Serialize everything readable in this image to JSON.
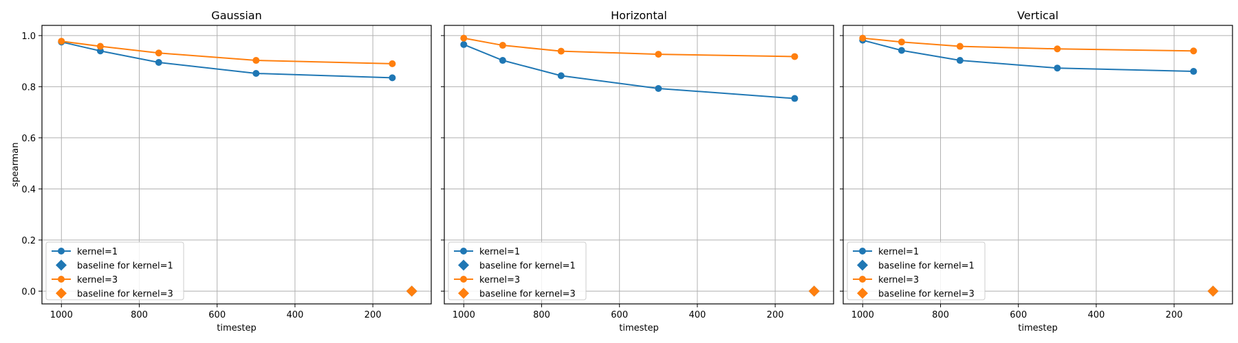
{
  "colors": {
    "kernel1": "#1f77b4",
    "kernel3": "#ff7f0e",
    "grid": "#b0b0b0"
  },
  "chart_data": [
    {
      "type": "line",
      "title": "Gaussian",
      "xlabel": "timestep",
      "ylabel": "spearman",
      "xlim": [
        1050,
        50
      ],
      "ylim": [
        -0.05,
        1.04
      ],
      "x_ticks": [
        1000,
        800,
        600,
        400,
        200
      ],
      "y_ticks": [
        "0.0",
        "0.2",
        "0.4",
        "0.6",
        "0.8",
        "1.0"
      ],
      "grid": true,
      "legend_position": "lower-left",
      "series": [
        {
          "name": "kernel=1",
          "marker": "circle",
          "color": "#1f77b4",
          "x": [
            1000,
            900,
            750,
            500,
            150
          ],
          "y": [
            0.975,
            0.94,
            0.895,
            0.852,
            0.835
          ]
        },
        {
          "name": "baseline for kernel=1",
          "marker": "diamond",
          "color": "#1f77b4",
          "x": [
            100
          ],
          "y": [
            0.0
          ]
        },
        {
          "name": "kernel=3",
          "marker": "circle",
          "color": "#ff7f0e",
          "x": [
            1000,
            900,
            750,
            500,
            150
          ],
          "y": [
            0.978,
            0.958,
            0.932,
            0.903,
            0.89
          ]
        },
        {
          "name": "baseline for kernel=3",
          "marker": "diamond",
          "color": "#ff7f0e",
          "x": [
            100
          ],
          "y": [
            0.0
          ]
        }
      ]
    },
    {
      "type": "line",
      "title": "Horizontal",
      "xlabel": "timestep",
      "ylabel": "",
      "xlim": [
        1050,
        50
      ],
      "ylim": [
        -0.05,
        1.04
      ],
      "x_ticks": [
        1000,
        800,
        600,
        400,
        200
      ],
      "y_ticks": [
        "0.0",
        "0.2",
        "0.4",
        "0.6",
        "0.8",
        "1.0"
      ],
      "grid": true,
      "legend_position": "lower-left",
      "series": [
        {
          "name": "kernel=1",
          "marker": "circle",
          "color": "#1f77b4",
          "x": [
            1000,
            900,
            750,
            500,
            150
          ],
          "y": [
            0.965,
            0.903,
            0.843,
            0.793,
            0.754
          ]
        },
        {
          "name": "baseline for kernel=1",
          "marker": "diamond",
          "color": "#1f77b4",
          "x": [
            100
          ],
          "y": [
            0.0
          ]
        },
        {
          "name": "kernel=3",
          "marker": "circle",
          "color": "#ff7f0e",
          "x": [
            1000,
            900,
            750,
            500,
            150
          ],
          "y": [
            0.99,
            0.962,
            0.939,
            0.927,
            0.918
          ]
        },
        {
          "name": "baseline for kernel=3",
          "marker": "diamond",
          "color": "#ff7f0e",
          "x": [
            100
          ],
          "y": [
            0.0
          ]
        }
      ]
    },
    {
      "type": "line",
      "title": "Vertical",
      "xlabel": "timestep",
      "ylabel": "",
      "xlim": [
        1050,
        50
      ],
      "ylim": [
        -0.05,
        1.04
      ],
      "x_ticks": [
        1000,
        800,
        600,
        400,
        200
      ],
      "y_ticks": [
        "0.0",
        "0.2",
        "0.4",
        "0.6",
        "0.8",
        "1.0"
      ],
      "grid": true,
      "legend_position": "lower-left",
      "series": [
        {
          "name": "kernel=1",
          "marker": "circle",
          "color": "#1f77b4",
          "x": [
            1000,
            900,
            750,
            500,
            150
          ],
          "y": [
            0.982,
            0.942,
            0.903,
            0.873,
            0.86
          ]
        },
        {
          "name": "baseline for kernel=1",
          "marker": "diamond",
          "color": "#1f77b4",
          "x": [
            100
          ],
          "y": [
            0.0
          ]
        },
        {
          "name": "kernel=3",
          "marker": "circle",
          "color": "#ff7f0e",
          "x": [
            1000,
            900,
            750,
            500,
            150
          ],
          "y": [
            0.99,
            0.975,
            0.958,
            0.948,
            0.94
          ]
        },
        {
          "name": "baseline for kernel=3",
          "marker": "diamond",
          "color": "#ff7f0e",
          "x": [
            100
          ],
          "y": [
            0.0
          ]
        }
      ]
    }
  ]
}
